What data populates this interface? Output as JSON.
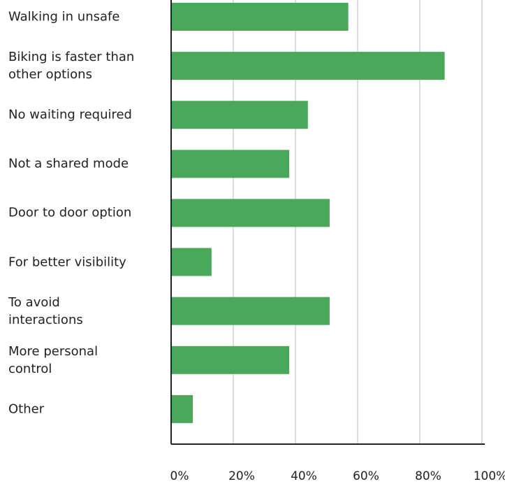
{
  "chart_data": {
    "type": "barh",
    "categories": [
      "Walking in unsafe",
      "Biking is faster than\nother options",
      "No waiting required",
      "Not a shared mode",
      "Door to door option",
      "For better visibility",
      "To avoid\ninteractions",
      "More personal\ncontrol",
      "Other"
    ],
    "values": [
      57,
      88,
      44,
      38,
      51,
      13,
      51,
      38,
      7
    ],
    "color": "#4aa85a",
    "xlim": [
      0,
      100
    ],
    "xticks": [
      {
        "value": 0,
        "label": "0%"
      },
      {
        "value": 20,
        "label": "20%"
      },
      {
        "value": 40,
        "label": "40%"
      },
      {
        "value": 60,
        "label": "60%"
      },
      {
        "value": 80,
        "label": "80%"
      },
      {
        "value": 100,
        "label": "100%"
      }
    ],
    "grid": true
  }
}
